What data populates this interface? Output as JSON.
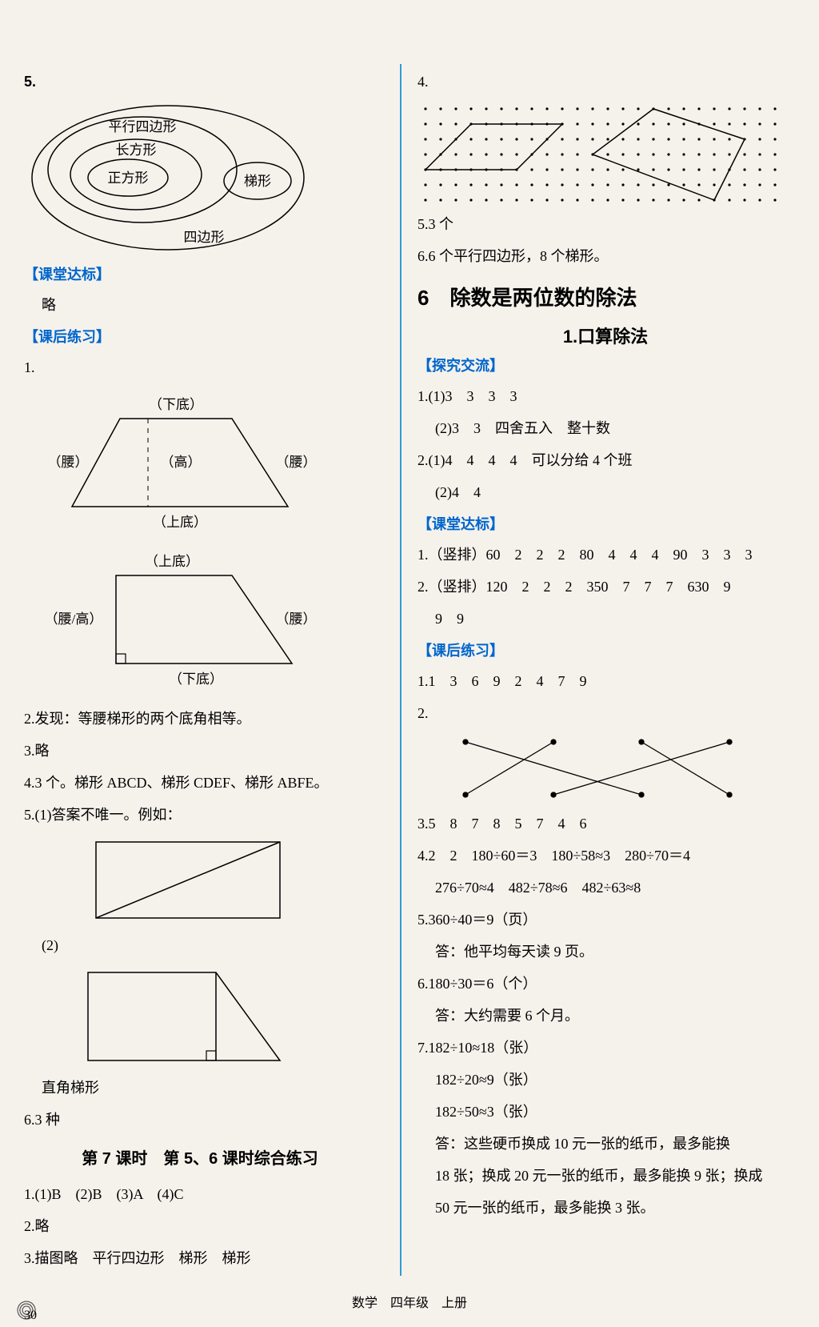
{
  "left": {
    "q5": "5.",
    "venn": {
      "labels": {
        "pingxing": "平行四边形",
        "changfang": "长方形",
        "zhengfang": "正方形",
        "tixing": "梯形",
        "sibian": "四边形"
      }
    },
    "ketang": "【课堂达标】",
    "lue": "略",
    "kehou": "【课后练习】",
    "q1": "1.",
    "trap1": {
      "topBase": "（下底）",
      "leftSide": "（腰）",
      "height": "（高）",
      "rightSide": "（腰）",
      "bottomBase": "（上底）"
    },
    "trap2": {
      "topBase": "（上底）",
      "leftSide": "（腰/高）",
      "rightSide": "（腰）",
      "bottomBase": "（下底）"
    },
    "q2": "2.发现：等腰梯形的两个底角相等。",
    "q3": "3.略",
    "q4": "4.3 个。梯形 ABCD、梯形 CDEF、梯形 ABFE。",
    "q5_1": "5.(1)答案不唯一。例如：",
    "q5_2": "(2)",
    "zhijiao": "直角梯形",
    "q6": "6.3 种",
    "lesson7": "第 7 课时　第 5、6 课时综合练习",
    "l1": "1.(1)B　(2)B　(3)A　(4)C",
    "l2": "2.略",
    "l3": "3.描图略　平行四边形　梯形　梯形"
  },
  "right": {
    "q4": "4.",
    "q5": "5.3 个",
    "q6": "6.6 个平行四边形，8 个梯形。",
    "chapter": "6　除数是两位数的除法",
    "sub": "1.口算除法",
    "tanjiu": "【探究交流】",
    "t1_1": "1.(1)3　3　3　3",
    "t1_2": "(2)3　3　四舍五入　整十数",
    "t2_1": "2.(1)4　4　4　4　可以分给 4 个班",
    "t2_2": "(2)4　4",
    "ketang": "【课堂达标】",
    "k1": "1.（竖排）60　2　2　2　80　4　4　4　90　3　3　3",
    "k2": "2.（竖排）120　2　2　2　350　7　7　7　630　9",
    "k2b": "9　9",
    "kehou": "【课后练习】",
    "h1": "1.1　3　6　9　2　4　7　9",
    "h2": "2.",
    "h3": "3.5　8　7　8　5　7　4　6",
    "h4a": "4.2　2　180÷60＝3　180÷58≈3　280÷70＝4",
    "h4b": "276÷70≈4　482÷78≈6　482÷63≈8",
    "h5a": "5.360÷40＝9（页）",
    "h5b": "答：他平均每天读 9 页。",
    "h6a": "6.180÷30＝6（个）",
    "h6b": "答：大约需要 6 个月。",
    "h7a": "7.182÷10≈18（张）",
    "h7b": "182÷20≈9（张）",
    "h7c": "182÷50≈3（张）",
    "h7d": "答：这些硬币换成 10 元一张的纸币，最多能换",
    "h7e": "18 张；换成 20 元一张的纸币，最多能换 9 张；换成",
    "h7f": "50 元一张的纸币，最多能换 3 张。"
  },
  "footer": "数学　四年级　上册",
  "pageNum": "30",
  "colors": {
    "blue": "#0066cc",
    "divider": "#2a9fd6",
    "stroke": "#000000"
  }
}
